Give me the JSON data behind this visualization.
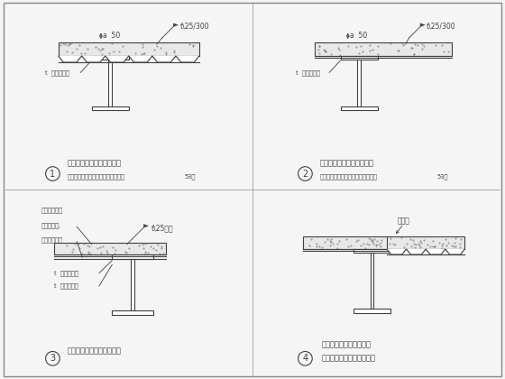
{
  "bg_color": "#f5f5f5",
  "line_color": "#404040",
  "title1": "板肋与梁平行且悬挑较短时",
  "title1_sub": "（不同悬挑长度与板厚的要求详见表",
  "title1_num": "53）",
  "title2": "板肋与梁垂直且悬挑较短时",
  "title2_sub": "（不同悬挑长度与板厚的要求详见表",
  "title2_num": "53）",
  "title3": "板肋与梁垂直且悬挑较长时",
  "title4a": "在同一根梁上既有板肋与",
  "title4b": "梁垂直又有板肋与梁平行时",
  "label_a50": "a  50",
  "label_t25300": "t\\25/300",
  "label_t25begin": "t\\25始距",
  "label_thick1": "t  厚钢板包边",
  "label_thick2": "t  厚钢板包边",
  "label_anchor": "根套不同板型\n和作用荷载,\n确定最大长度",
  "label_jiatouban": "箍头板"
}
